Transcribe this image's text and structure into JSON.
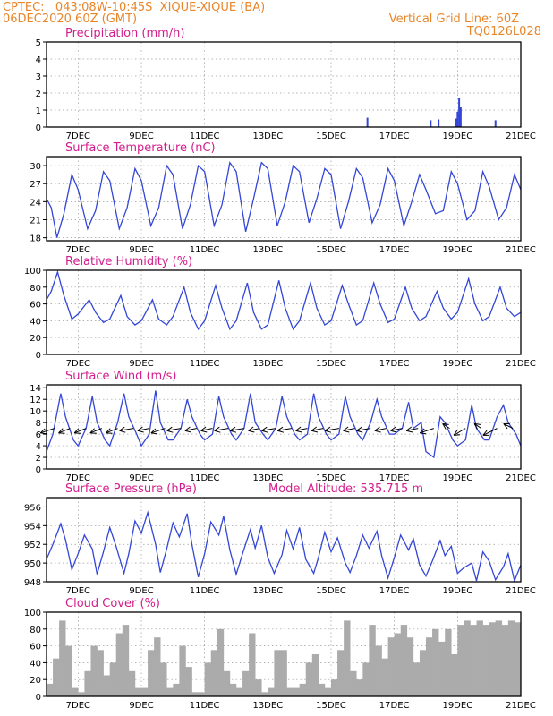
{
  "header": {
    "line1": "CPTEC:   043:08W-10:45S  XIQUE-XIQUE (BA)",
    "line2": "06DEC2020 60Z (GMT)",
    "right1": "Vertical Grid Line: 60Z",
    "right2": "TQ0126L028"
  },
  "colors": {
    "header": "#e8862a",
    "title": "#d21e8c",
    "series": "#3346d6",
    "cloud": "#ababab",
    "arrow": "#000000"
  },
  "x_ticks": [
    "7DEC",
    "9DEC",
    "11DEC",
    "13DEC",
    "15DEC",
    "17DEC",
    "19DEC",
    "21DEC"
  ],
  "chart_data": [
    {
      "type": "bar",
      "title": "Precipitation (mm/h)",
      "xlim": [
        6.0,
        21.0
      ],
      "ylim": [
        0,
        5
      ],
      "yticks": [
        0,
        1,
        2,
        3,
        4,
        5
      ],
      "color": "#3346d6",
      "x": [
        16.15,
        18.15,
        18.4,
        18.95,
        19.0,
        19.05,
        19.1,
        20.2
      ],
      "values": [
        0.55,
        0.4,
        0.45,
        0.5,
        0.9,
        1.7,
        1.2,
        0.4
      ]
    },
    {
      "type": "line",
      "title": "Surface Temperature (nC)",
      "xlim": [
        6.0,
        21.0
      ],
      "ylim": [
        17.5,
        31.5
      ],
      "yticks": [
        18,
        21,
        24,
        27,
        30
      ],
      "x": [
        6.0,
        6.15,
        6.33,
        6.55,
        6.8,
        7.0,
        7.3,
        7.55,
        7.8,
        8.0,
        8.3,
        8.55,
        8.8,
        9.0,
        9.3,
        9.55,
        9.8,
        10.0,
        10.3,
        10.55,
        10.8,
        11.0,
        11.3,
        11.55,
        11.8,
        12.0,
        12.3,
        12.55,
        12.8,
        13.0,
        13.3,
        13.55,
        13.8,
        14.0,
        14.3,
        14.55,
        14.8,
        15.0,
        15.3,
        15.55,
        15.8,
        16.0,
        16.3,
        16.55,
        16.8,
        17.0,
        17.3,
        17.55,
        17.8,
        18.0,
        18.3,
        18.55,
        18.8,
        19.0,
        19.3,
        19.55,
        19.8,
        20.0,
        20.3,
        20.55,
        20.8,
        21.0
      ],
      "values": [
        24.5,
        23.0,
        18.0,
        22.0,
        28.5,
        26.0,
        19.5,
        22.5,
        29.0,
        27.5,
        19.5,
        23.0,
        29.5,
        27.5,
        20.0,
        23.0,
        30.0,
        28.5,
        19.5,
        23.5,
        30.0,
        29.0,
        20.0,
        23.5,
        30.5,
        29.0,
        19.0,
        24.5,
        30.5,
        29.5,
        20.0,
        24.0,
        30.0,
        29.0,
        20.5,
        24.5,
        29.5,
        28.5,
        19.5,
        24.0,
        29.5,
        28.0,
        20.5,
        23.5,
        29.5,
        27.5,
        20.0,
        24.0,
        28.5,
        26.0,
        22.0,
        22.5,
        29.0,
        27.0,
        21.0,
        22.5,
        29.0,
        26.5,
        21.0,
        23.0,
        28.5,
        26.0
      ]
    },
    {
      "type": "line",
      "title": "Relative Humidity (%)",
      "xlim": [
        6.0,
        21.0
      ],
      "ylim": [
        0,
        100
      ],
      "yticks": [
        0,
        20,
        40,
        60,
        80,
        100
      ],
      "x": [
        6.0,
        6.15,
        6.35,
        6.55,
        6.8,
        7.0,
        7.35,
        7.55,
        7.8,
        8.0,
        8.35,
        8.55,
        8.8,
        9.0,
        9.35,
        9.55,
        9.8,
        10.0,
        10.35,
        10.55,
        10.8,
        11.0,
        11.35,
        11.55,
        11.8,
        12.0,
        12.35,
        12.55,
        12.8,
        13.0,
        13.35,
        13.55,
        13.8,
        14.0,
        14.35,
        14.55,
        14.8,
        15.0,
        15.35,
        15.55,
        15.8,
        16.0,
        16.35,
        16.55,
        16.8,
        17.0,
        17.35,
        17.55,
        17.8,
        18.0,
        18.35,
        18.55,
        18.8,
        19.0,
        19.35,
        19.55,
        19.8,
        20.0,
        20.35,
        20.55,
        20.8,
        21.0
      ],
      "values": [
        65,
        75,
        98,
        70,
        42,
        48,
        65,
        50,
        38,
        42,
        70,
        45,
        35,
        40,
        65,
        42,
        35,
        45,
        80,
        50,
        30,
        40,
        82,
        55,
        30,
        40,
        85,
        50,
        30,
        35,
        88,
        55,
        30,
        40,
        85,
        55,
        35,
        40,
        82,
        60,
        35,
        40,
        85,
        60,
        38,
        42,
        80,
        55,
        40,
        45,
        75,
        55,
        42,
        50,
        90,
        60,
        40,
        45,
        80,
        55,
        45,
        50
      ]
    },
    {
      "type": "line",
      "title": "Surface Wind (m/s)",
      "xlim": [
        6.0,
        21.0
      ],
      "ylim": [
        0,
        14.5
      ],
      "yticks": [
        0,
        2,
        4,
        6,
        8,
        10,
        12,
        14
      ],
      "x": [
        6.0,
        6.2,
        6.45,
        6.6,
        6.85,
        7.0,
        7.25,
        7.45,
        7.6,
        7.85,
        8.0,
        8.25,
        8.45,
        8.6,
        8.85,
        9.0,
        9.25,
        9.45,
        9.6,
        9.85,
        10.0,
        10.25,
        10.45,
        10.6,
        10.85,
        11.0,
        11.25,
        11.45,
        11.6,
        11.85,
        12.0,
        12.25,
        12.45,
        12.6,
        12.85,
        13.0,
        13.25,
        13.45,
        13.6,
        13.85,
        14.0,
        14.25,
        14.45,
        14.6,
        14.85,
        15.0,
        15.25,
        15.45,
        15.6,
        15.85,
        16.0,
        16.25,
        16.45,
        16.6,
        16.85,
        17.0,
        17.25,
        17.45,
        17.6,
        17.85,
        18.0,
        18.25,
        18.45,
        18.6,
        18.85,
        19.0,
        19.25,
        19.45,
        19.6,
        19.85,
        20.0,
        20.25,
        20.45,
        20.6,
        20.85,
        21.0
      ],
      "values": [
        3,
        6,
        13,
        9,
        5,
        4,
        7,
        12.5,
        8,
        5,
        4,
        8,
        13,
        9,
        6,
        4,
        6,
        13.5,
        8,
        5,
        5,
        7,
        12,
        9,
        6,
        5,
        6,
        12.5,
        9,
        6,
        5,
        7,
        13,
        8,
        6,
        5,
        7,
        12.5,
        9,
        6,
        5,
        6,
        13,
        9,
        6,
        5,
        6,
        12.5,
        9,
        6,
        5,
        8,
        12,
        9,
        6,
        6,
        7,
        11.5,
        7,
        8,
        3,
        2,
        9,
        8,
        5,
        4,
        5,
        11,
        7,
        5,
        5,
        9,
        11,
        8,
        6,
        4
      ],
      "vectors_x": [
        6.25,
        6.75,
        7.25,
        7.75,
        8.25,
        8.75,
        9.25,
        9.75,
        10.25,
        10.75,
        11.25,
        11.75,
        12.25,
        12.75,
        13.25,
        13.75,
        14.25,
        14.75,
        15.25,
        15.75,
        16.25,
        16.75,
        17.25,
        17.75,
        18.25,
        18.75,
        19.25,
        19.75,
        20.25,
        20.75
      ],
      "vectors_u": [
        -6,
        -5,
        -5,
        -5,
        -5,
        -6,
        -5,
        -6,
        -6,
        -5,
        -5,
        -6,
        -6,
        -5,
        -6,
        -6,
        -5,
        -5,
        -6,
        -5,
        -6,
        -5,
        -5,
        -5,
        -6,
        -3,
        -5,
        -3,
        -6,
        -4
      ],
      "vectors_v": [
        -2,
        -2,
        -2,
        -2,
        -2,
        -1,
        -1,
        -2,
        -1,
        -1,
        -1,
        -1,
        -1,
        -1,
        -1,
        -1,
        -1,
        -1,
        -1,
        -1,
        -1,
        -1,
        -1,
        -1,
        -2,
        2,
        -3,
        2,
        -3,
        2
      ]
    },
    {
      "type": "line",
      "title": "Surface Pressure (hPa)",
      "annotation": "Model Altitude: 535.715  m",
      "xlim": [
        6.0,
        21.0
      ],
      "ylim": [
        948,
        957
      ],
      "yticks": [
        948,
        950,
        952,
        954,
        956
      ],
      "x": [
        6.0,
        6.2,
        6.45,
        6.6,
        6.8,
        7.0,
        7.2,
        7.45,
        7.6,
        7.8,
        8.0,
        8.2,
        8.45,
        8.6,
        8.8,
        9.0,
        9.2,
        9.45,
        9.6,
        9.8,
        10.0,
        10.2,
        10.45,
        10.6,
        10.8,
        11.0,
        11.2,
        11.45,
        11.6,
        11.8,
        12.0,
        12.2,
        12.45,
        12.6,
        12.8,
        13.0,
        13.2,
        13.45,
        13.6,
        13.8,
        14.0,
        14.2,
        14.45,
        14.6,
        14.8,
        15.0,
        15.2,
        15.45,
        15.6,
        15.8,
        16.0,
        16.2,
        16.45,
        16.6,
        16.8,
        17.0,
        17.2,
        17.45,
        17.6,
        17.8,
        18.0,
        18.2,
        18.45,
        18.6,
        18.8,
        19.0,
        19.2,
        19.45,
        19.6,
        19.8,
        20.0,
        20.2,
        20.45,
        20.6,
        20.8,
        21.0
      ],
      "values": [
        950.4,
        952.0,
        954.2,
        952.5,
        949.3,
        951.0,
        953.0,
        951.5,
        948.8,
        951.2,
        953.8,
        951.8,
        948.9,
        951.0,
        954.5,
        953.2,
        955.4,
        952.0,
        949.0,
        951.5,
        954.3,
        952.8,
        955.3,
        952.0,
        948.5,
        951.0,
        954.4,
        953.0,
        955.0,
        951.4,
        948.8,
        951.0,
        953.6,
        951.6,
        954.0,
        950.6,
        948.9,
        950.9,
        953.5,
        951.5,
        953.8,
        950.4,
        948.9,
        950.6,
        953.3,
        951.2,
        952.7,
        950.0,
        949.0,
        950.8,
        953.0,
        951.6,
        953.4,
        950.8,
        948.4,
        950.6,
        953.0,
        951.4,
        952.6,
        949.8,
        948.6,
        950.2,
        952.4,
        950.8,
        951.8,
        948.9,
        949.5,
        950.0,
        948.1,
        951.2,
        950.2,
        948.2,
        949.6,
        951.0,
        948.1,
        949.8
      ]
    },
    {
      "type": "bar",
      "title": "Cloud Cover (%)",
      "xlim": [
        6.0,
        21.0
      ],
      "ylim": [
        0,
        100
      ],
      "yticks": [
        0,
        20,
        40,
        60,
        80,
        100
      ],
      "color": "#ababab",
      "x": [
        6.0,
        6.2,
        6.4,
        6.6,
        6.8,
        7.0,
        7.2,
        7.4,
        7.6,
        7.8,
        8.0,
        8.2,
        8.4,
        8.6,
        8.8,
        9.0,
        9.2,
        9.4,
        9.6,
        9.8,
        10.0,
        10.2,
        10.4,
        10.6,
        10.8,
        11.0,
        11.2,
        11.4,
        11.6,
        11.8,
        12.0,
        12.2,
        12.4,
        12.6,
        12.8,
        13.0,
        13.2,
        13.4,
        13.6,
        13.8,
        14.0,
        14.2,
        14.4,
        14.6,
        14.8,
        15.0,
        15.2,
        15.4,
        15.6,
        15.8,
        16.0,
        16.2,
        16.4,
        16.6,
        16.8,
        17.0,
        17.2,
        17.4,
        17.6,
        17.8,
        18.0,
        18.2,
        18.4,
        18.6,
        18.8,
        19.0,
        19.2,
        19.4,
        19.6,
        19.8,
        20.0,
        20.2,
        20.4,
        20.6,
        20.8
      ],
      "values": [
        15,
        45,
        90,
        60,
        10,
        5,
        30,
        60,
        55,
        25,
        40,
        75,
        85,
        30,
        10,
        10,
        55,
        70,
        40,
        10,
        15,
        60,
        35,
        5,
        5,
        40,
        55,
        80,
        30,
        15,
        10,
        30,
        75,
        20,
        5,
        10,
        55,
        55,
        10,
        10,
        15,
        40,
        50,
        15,
        10,
        20,
        55,
        90,
        30,
        20,
        40,
        85,
        60,
        45,
        70,
        75,
        85,
        70,
        40,
        55,
        70,
        80,
        65,
        80,
        50,
        85,
        90,
        85,
        90,
        85,
        88,
        90,
        85,
        90,
        88
      ]
    }
  ]
}
